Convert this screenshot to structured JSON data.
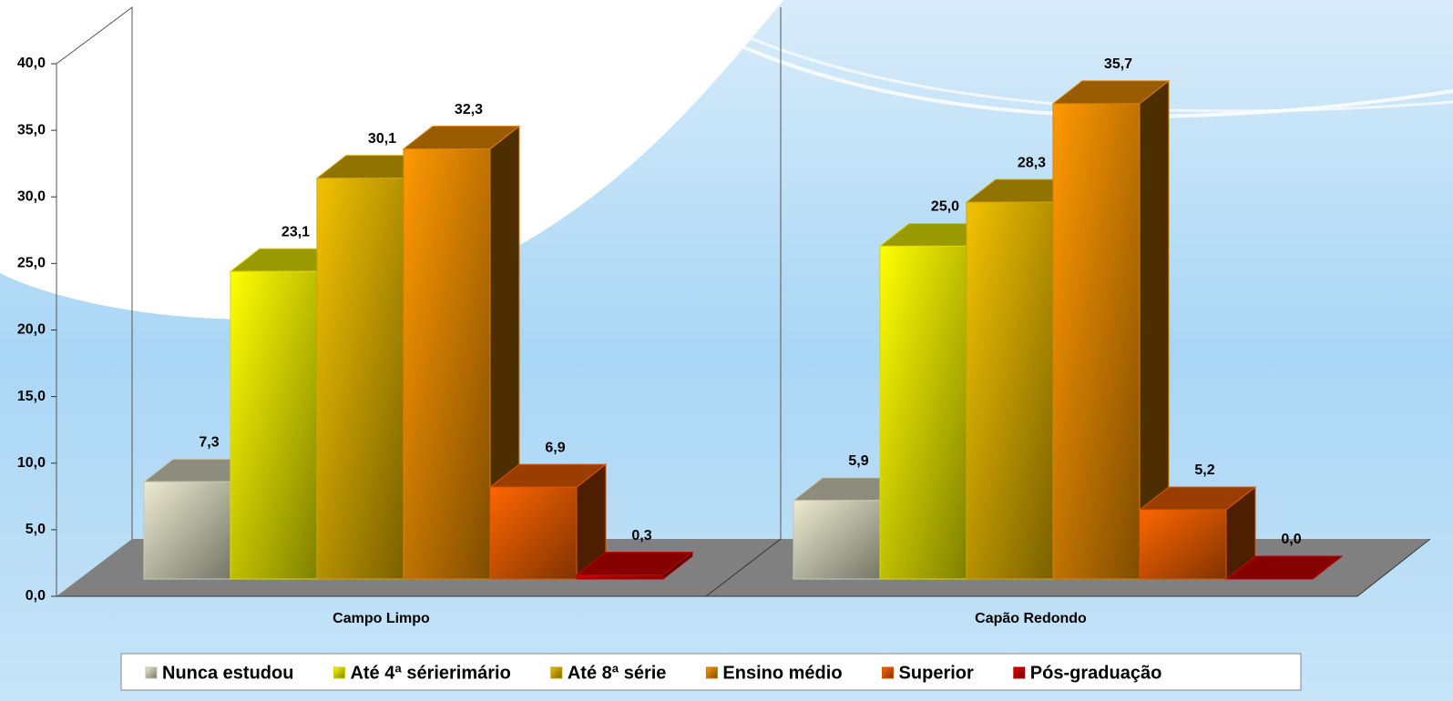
{
  "chart_data": {
    "type": "bar3d",
    "categories": [
      "Campo Limpo",
      "Capão Redondo"
    ],
    "series": [
      {
        "name": "Nunca estudou",
        "color": "#ecebd0",
        "values": [
          7.3,
          5.9
        ],
        "value_labels": [
          "7,3",
          "5,9"
        ]
      },
      {
        "name": "Até 4ª sérierimário",
        "color": "#ffff00",
        "values": [
          23.1,
          25.0
        ],
        "value_labels": [
          "23,1",
          "25,0"
        ]
      },
      {
        "name": "Até 8ª série",
        "color": "#f2c200",
        "values": [
          30.1,
          28.3
        ],
        "value_labels": [
          "30,1",
          "28,3"
        ]
      },
      {
        "name": "Ensino médio",
        "color": "#ff9900",
        "values": [
          32.3,
          35.7
        ],
        "value_labels": [
          "32,3",
          "35,7"
        ]
      },
      {
        "name": "Superior",
        "color": "#ff6600",
        "values": [
          6.9,
          5.2
        ],
        "value_labels": [
          "6,9",
          "5,2"
        ]
      },
      {
        "name": "Pós-graduação",
        "color": "#e00000",
        "values": [
          0.3,
          0.0
        ],
        "value_labels": [
          "0,3",
          "0,0"
        ]
      }
    ],
    "ylim": [
      0,
      40
    ],
    "yticks": [
      {
        "value": 0,
        "label": "0,0"
      },
      {
        "value": 5,
        "label": "5,0"
      },
      {
        "value": 10,
        "label": "10,0"
      },
      {
        "value": 15,
        "label": "15,0"
      },
      {
        "value": 20,
        "label": "20,0"
      },
      {
        "value": 25,
        "label": "25,0"
      },
      {
        "value": 30,
        "label": "30,0"
      },
      {
        "value": 35,
        "label": "35,0"
      },
      {
        "value": 40,
        "label": "40,0"
      }
    ],
    "legend": "bottom"
  }
}
